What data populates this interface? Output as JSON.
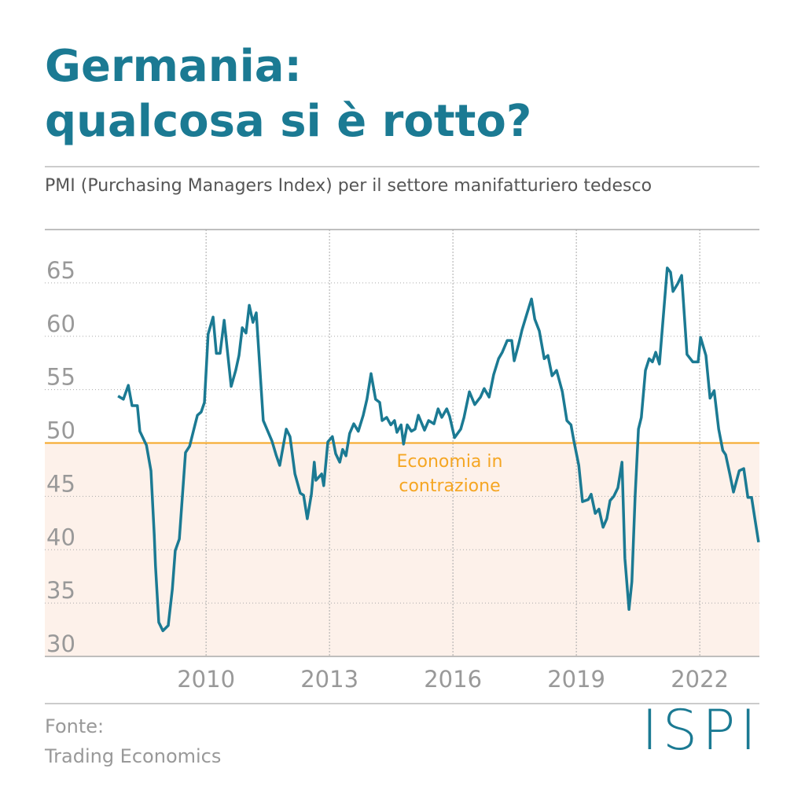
{
  "chart_data": {
    "type": "line",
    "title": [
      "Germania:",
      "qualcosa si è rotto?"
    ],
    "subtitle": "PMI (Purchasing Managers Index) per il settore manifatturiero tedesco",
    "annotation": "Economia in contrazione",
    "threshold": 50,
    "threshold_color": "#f5a623",
    "shade_color": "#fdf1ea",
    "source_label": "Fonte:",
    "source": "Trading Economics",
    "logo": "ISPI",
    "xlim": [
      2006.08,
      2023.45
    ],
    "xticks": [
      2010,
      2013,
      2016,
      2019,
      2022
    ],
    "ylim": [
      30,
      70
    ],
    "yticks": [
      30,
      35,
      40,
      45,
      50,
      55,
      60,
      65
    ],
    "grid": true,
    "series": [
      {
        "color": "#1b7a93",
        "x": [
          2007.86,
          2007.99,
          2008.11,
          2008.2,
          2008.33,
          2008.39,
          2008.55,
          2008.66,
          2008.74,
          2008.77,
          2008.85,
          2008.95,
          2009.08,
          2009.18,
          2009.25,
          2009.35,
          2009.5,
          2009.6,
          2009.73,
          2009.79,
          2009.88,
          2009.96,
          2010.05,
          2010.17,
          2010.25,
          2010.34,
          2010.44,
          2010.61,
          2010.72,
          2010.8,
          2010.88,
          2010.97,
          2011.05,
          2011.14,
          2011.22,
          2011.39,
          2011.6,
          2011.7,
          2011.79,
          2011.95,
          2012.04,
          2012.16,
          2012.29,
          2012.37,
          2012.46,
          2012.56,
          2012.63,
          2012.67,
          2012.81,
          2012.86,
          2012.96,
          2013.07,
          2013.15,
          2013.25,
          2013.32,
          2013.4,
          2013.49,
          2013.59,
          2013.7,
          2013.82,
          2013.91,
          2014.01,
          2014.12,
          2014.22,
          2014.28,
          2014.39,
          2014.49,
          2014.58,
          2014.64,
          2014.74,
          2014.8,
          2014.89,
          2014.99,
          2015.08,
          2015.16,
          2015.31,
          2015.41,
          2015.54,
          2015.64,
          2015.73,
          2015.85,
          2015.92,
          2016.04,
          2016.19,
          2016.27,
          2016.4,
          2016.53,
          2016.67,
          2016.76,
          2016.88,
          2016.99,
          2017.11,
          2017.2,
          2017.32,
          2017.43,
          2017.49,
          2017.6,
          2017.68,
          2017.79,
          2017.91,
          2017.99,
          2018.1,
          2018.22,
          2018.31,
          2018.41,
          2018.52,
          2018.66,
          2018.77,
          2018.87,
          2018.94,
          2019.06,
          2019.15,
          2019.29,
          2019.36,
          2019.46,
          2019.55,
          2019.65,
          2019.74,
          2019.82,
          2019.91,
          2020.01,
          2020.11,
          2020.18,
          2020.28,
          2020.35,
          2020.43,
          2020.51,
          2020.58,
          2020.68,
          2020.77,
          2020.85,
          2020.93,
          2021.02,
          2021.21,
          2021.29,
          2021.35,
          2021.46,
          2021.56,
          2021.69,
          2021.83,
          2021.96,
          2022.02,
          2022.15,
          2022.25,
          2022.35,
          2022.46,
          2022.56,
          2022.63,
          2022.73,
          2022.82,
          2022.96,
          2023.07,
          2023.17,
          2023.26,
          2023.34,
          2023.43
        ],
        "values": [
          54.4,
          54.1,
          55.4,
          53.5,
          53.5,
          51.1,
          49.8,
          47.4,
          41.4,
          38.5,
          33.2,
          32.4,
          32.9,
          36.3,
          39.9,
          41.0,
          49.1,
          49.7,
          51.7,
          52.6,
          52.9,
          53.8,
          60.2,
          61.8,
          58.4,
          58.4,
          61.5,
          55.3,
          56.8,
          58.2,
          60.8,
          60.3,
          62.9,
          61.3,
          62.2,
          52.1,
          50.2,
          48.9,
          47.9,
          51.3,
          50.6,
          47.1,
          45.3,
          45.1,
          42.9,
          45.2,
          48.2,
          46.5,
          47.1,
          46.0,
          50.1,
          50.6,
          49.0,
          48.2,
          49.4,
          48.8,
          50.9,
          51.8,
          51.1,
          52.6,
          54.1,
          56.5,
          54.1,
          53.8,
          52.1,
          52.4,
          51.7,
          52.1,
          51.0,
          51.7,
          49.9,
          51.7,
          51.1,
          51.3,
          52.6,
          51.2,
          52.1,
          51.8,
          53.2,
          52.4,
          53.2,
          52.5,
          50.5,
          51.3,
          52.4,
          54.8,
          53.6,
          54.3,
          55.1,
          54.3,
          56.4,
          57.9,
          58.5,
          59.6,
          59.6,
          57.7,
          59.3,
          60.6,
          62.0,
          63.5,
          61.6,
          60.5,
          57.9,
          58.2,
          56.3,
          56.8,
          54.8,
          52.1,
          51.7,
          50.2,
          47.9,
          44.5,
          44.7,
          45.2,
          43.4,
          43.8,
          42.1,
          42.9,
          44.6,
          45.0,
          45.8,
          48.2,
          39.2,
          34.4,
          37.0,
          45.1,
          51.3,
          52.4,
          56.8,
          57.9,
          57.6,
          58.5,
          57.4,
          66.4,
          66.0,
          64.2,
          64.9,
          65.7,
          58.3,
          57.6,
          57.6,
          59.9,
          58.2,
          54.2,
          54.9,
          51.3,
          49.3,
          48.9,
          47.1,
          45.4,
          47.4,
          47.6,
          44.9,
          44.9,
          42.9,
          40.7
        ]
      }
    ]
  }
}
